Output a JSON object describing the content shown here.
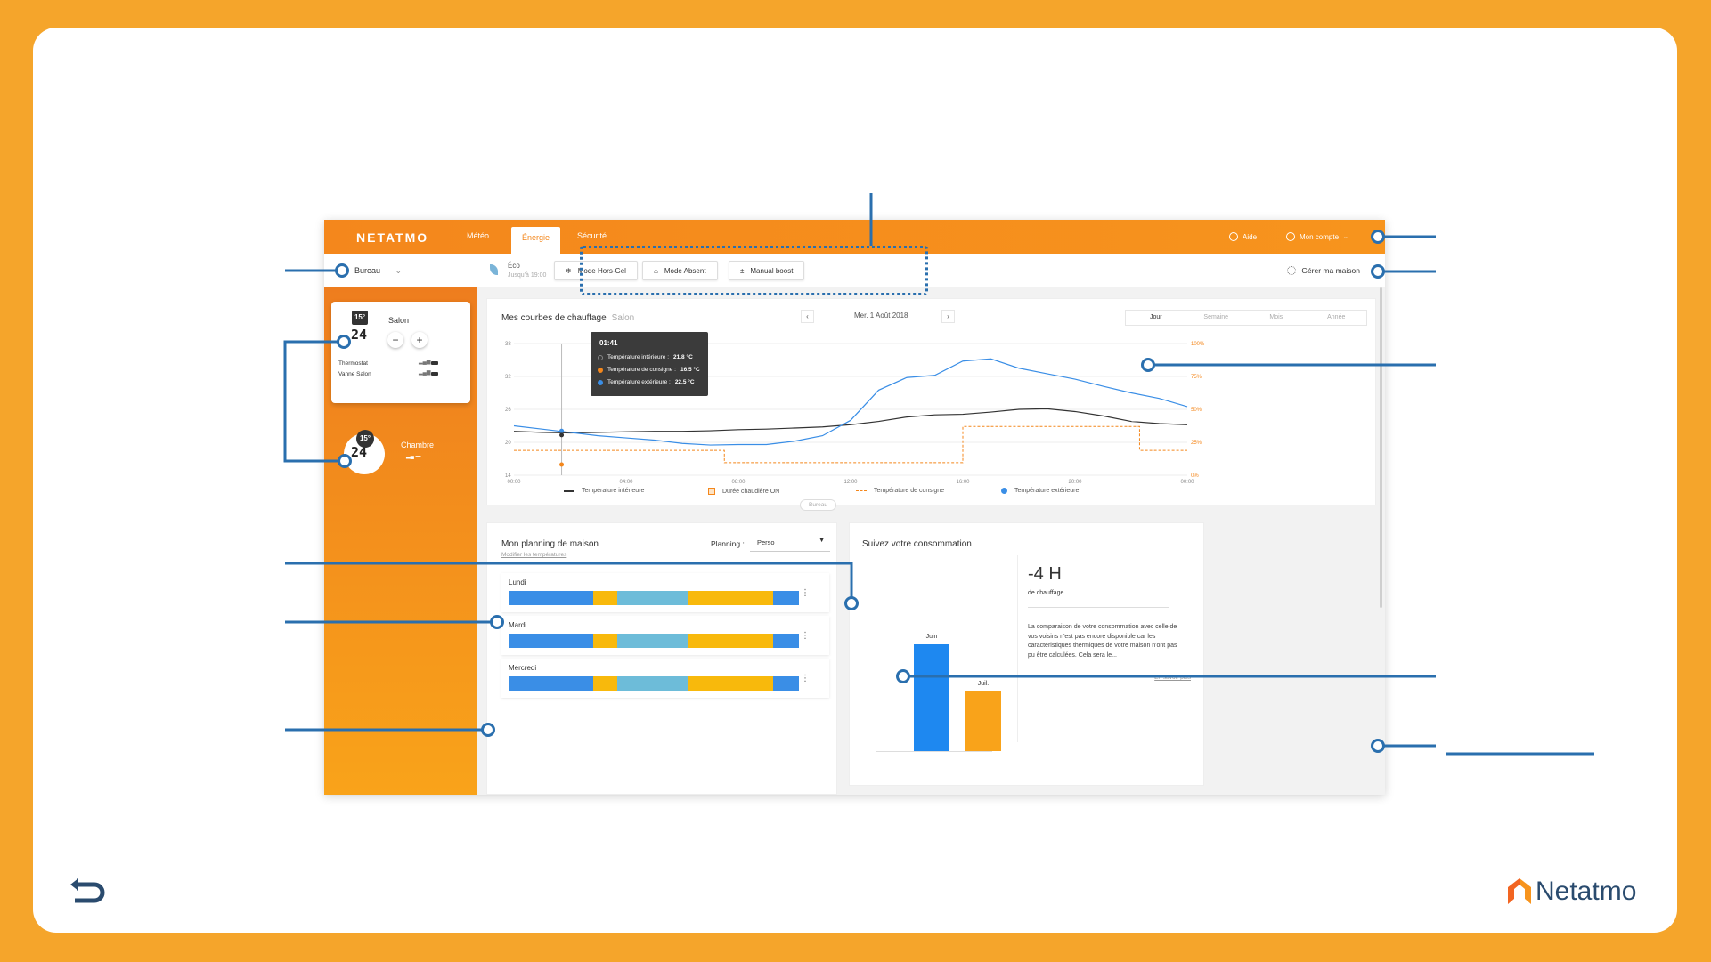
{
  "app": {
    "brand": "NETATMO",
    "tabs": [
      "Météo",
      "Énergie",
      "Sécurité"
    ],
    "active_tab": "Énergie",
    "help_label": "Aide",
    "account_label": "Mon compte",
    "home_select": "Bureau",
    "eco_mode": "Éco",
    "eco_until": "Jusqu'à 19:00",
    "mode_buttons": [
      "Mode Hors-Gel",
      "Mode Absent",
      "Manual boost"
    ],
    "manage_home": "Gérer ma maison"
  },
  "sidebar": {
    "rooms": [
      {
        "name": "Salon",
        "setpoint": "15°",
        "temperature": "24",
        "devices": [
          "Thermostat",
          "Vanne Salon"
        ]
      },
      {
        "name": "Chambre",
        "setpoint": "15°",
        "temperature": "24"
      }
    ]
  },
  "chart_header": {
    "title": "Mes courbes de chauffage",
    "room": "Salon",
    "date": "Mer. 1 Août 2018",
    "periods": [
      "Jour",
      "Semaine",
      "Mois",
      "Année"
    ],
    "active_period": "Jour"
  },
  "tooltip": {
    "time": "01:41",
    "rows": [
      {
        "label": "Température intérieure : ",
        "value": "21.8 °C",
        "color": "#444444"
      },
      {
        "label": "Température de consigne : ",
        "value": "16.5 °C",
        "color": "#F4871C"
      },
      {
        "label": "Température extérieure : ",
        "value": "22.5 °C",
        "color": "#3A8EE6"
      }
    ]
  },
  "chart_data": {
    "type": "line",
    "x_ticks": [
      "00:00",
      "04:00",
      "08:00",
      "12:00",
      "16:00",
      "20:00",
      "00:00"
    ],
    "y_ticks_left": [
      14,
      20,
      26,
      32,
      38
    ],
    "y_ticks_right": [
      "0%",
      "25%",
      "50%",
      "75%",
      "100%"
    ],
    "ylim": [
      14,
      38
    ],
    "xlim": [
      0,
      24
    ],
    "series": [
      {
        "name": "Température intérieure",
        "color": "#333333",
        "x": [
          0,
          1,
          2,
          3,
          4,
          5,
          6,
          7,
          8,
          9,
          10,
          11,
          12,
          13,
          14,
          15,
          16,
          17,
          18,
          19,
          20,
          21,
          22,
          23,
          24
        ],
        "y": [
          22,
          21.8,
          21.7,
          21.8,
          21.9,
          22,
          22,
          22.1,
          22.3,
          22.4,
          22.6,
          22.8,
          23.2,
          23.8,
          24.6,
          25,
          25.1,
          25.5,
          26,
          26.1,
          25.6,
          24.8,
          23.8,
          23.4,
          23.2
        ]
      },
      {
        "name": "Température extérieure",
        "color": "#3A8EE6",
        "x": [
          0,
          1,
          2,
          3,
          4,
          5,
          6,
          7,
          8,
          9,
          10,
          11,
          12,
          13,
          14,
          15,
          16,
          17,
          18,
          19,
          20,
          21,
          22,
          23,
          24
        ],
        "y": [
          23,
          22.4,
          21.8,
          21.2,
          20.8,
          20.4,
          19.8,
          19.5,
          19.6,
          19.6,
          20.2,
          21.2,
          24,
          29.5,
          31.8,
          32.2,
          34.8,
          35.2,
          33.5,
          32.5,
          31.5,
          30.2,
          29,
          28,
          26.5
        ]
      },
      {
        "name": "Température de consigne",
        "color": "#F4871C",
        "x": [
          0,
          1.5,
          7.5,
          8.5,
          12,
          16,
          18.5,
          20,
          22.3,
          24
        ],
        "y": [
          16.5,
          16.5,
          16.5,
          16.5,
          16.5,
          16.5,
          16.5,
          16.5,
          16.5,
          16.5
        ]
      }
    ],
    "boiler_on": [
      [
        0,
        1.5,
        0.22
      ],
      [
        1.5,
        7.5,
        0.22
      ],
      [
        7.5,
        12,
        0.05
      ],
      [
        12,
        16,
        0.05
      ],
      [
        16,
        22.3,
        0.55
      ],
      [
        22.3,
        24,
        0.22
      ]
    ],
    "legend": [
      "Température intérieure",
      "Durée chaudière ON",
      "Température de consigne",
      "Température extérieure"
    ]
  },
  "divider_label": "Bureau",
  "planning": {
    "title": "Mon planning de maison",
    "link": "Modifier les températures",
    "label": "Planning :",
    "selected": "Perso",
    "days": [
      "Lundi",
      "Mardi",
      "Mercredi"
    ],
    "segments": [
      {
        "fraction": 0.29,
        "color": "#3A8EE6"
      },
      {
        "fraction": 0.085,
        "color": "#F8B90C"
      },
      {
        "fraction": 0.245,
        "color": "#6DBCD9"
      },
      {
        "fraction": 0.29,
        "color": "#F8B90C"
      },
      {
        "fraction": 0.09,
        "color": "#3A8EE6"
      }
    ]
  },
  "consumption": {
    "title": "Suivez votre consommation",
    "bars": [
      {
        "label": "Juin",
        "value": 1.0,
        "color": "#1E88F0"
      },
      {
        "label": "Juil.",
        "value": 0.56,
        "color": "#F9A31A"
      }
    ],
    "delta": "-4 H",
    "delta_caption": "de chauffage",
    "text": "La comparaison de votre consommation avec celle de vos voisins n'est pas encore disponible car les caractéristiques thermiques de votre maison n'ont pas pu être calculées. Cela sera le...",
    "more_link": "En savoir plus"
  },
  "footer": {
    "logo_text": "Netatmo"
  },
  "colors": {
    "background": "#F5A52B",
    "accent": "#F4871C",
    "callout": "#2A6FAE"
  }
}
